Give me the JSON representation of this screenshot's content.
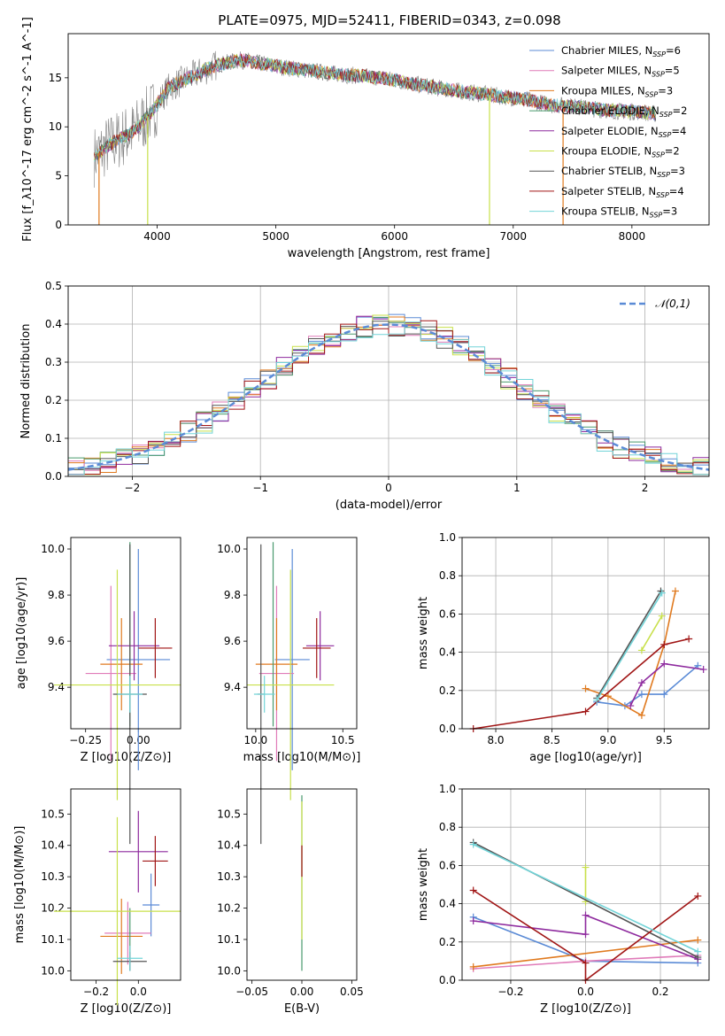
{
  "figure": {
    "title": "PLATE=0975, MJD=52411, FIBERID=0343, z=0.098"
  },
  "models": [
    {
      "name": "Chabrier MILES",
      "nssp": "6",
      "color": "#5b8bd6"
    },
    {
      "name": "Salpeter MILES",
      "nssp": "5",
      "color": "#e07bb9"
    },
    {
      "name": "Kroupa MILES",
      "nssp": "3",
      "color": "#e07a1f"
    },
    {
      "name": "Chabrier ELODIE",
      "nssp": "2",
      "color": "#4a9a6d"
    },
    {
      "name": "Salpeter ELODIE",
      "nssp": "4",
      "color": "#8e2a9e"
    },
    {
      "name": "Kroupa ELODIE",
      "nssp": "2",
      "color": "#c8e04a"
    },
    {
      "name": "Chabrier STELIB",
      "nssp": "3",
      "color": "#555555"
    },
    {
      "name": "Salpeter STELIB",
      "nssp": "4",
      "color": "#a01515"
    },
    {
      "name": "Kroupa STELIB",
      "nssp": "3",
      "color": "#72d4d8"
    }
  ],
  "chart_data": [
    {
      "id": "spectrum",
      "type": "line",
      "xlabel": "wavelength [Angstrom, rest frame]",
      "ylabel": "Flux [f_λ10^-17 erg cm^-2 s^-1 A^-1]",
      "xlim": [
        3250,
        8650
      ],
      "ylim": [
        0,
        19.5
      ],
      "xticks": [
        4000,
        5000,
        6000,
        7000,
        8000
      ],
      "yticks": [
        0,
        5,
        10,
        15
      ],
      "continuum": [
        [
          3470,
          7.0
        ],
        [
          3600,
          8.2
        ],
        [
          3800,
          9.5
        ],
        [
          3950,
          11.5
        ],
        [
          4100,
          14.0
        ],
        [
          4300,
          15.2
        ],
        [
          4500,
          16.3
        ],
        [
          4700,
          16.8
        ],
        [
          4900,
          16.4
        ],
        [
          5100,
          16.0
        ],
        [
          5300,
          15.7
        ],
        [
          5500,
          15.4
        ],
        [
          5700,
          15.2
        ],
        [
          5900,
          15.0
        ],
        [
          6100,
          14.5
        ],
        [
          6300,
          14.1
        ],
        [
          6500,
          13.7
        ],
        [
          6700,
          13.4
        ],
        [
          6900,
          13.1
        ],
        [
          7100,
          12.8
        ],
        [
          7300,
          12.3
        ],
        [
          7500,
          12.1
        ],
        [
          7700,
          11.8
        ],
        [
          7900,
          11.6
        ],
        [
          8100,
          11.5
        ],
        [
          8200,
          11.3
        ]
      ],
      "legend": "upper right",
      "grid": false
    },
    {
      "id": "residuals",
      "type": "histogram",
      "xlabel": "(data-model)/error",
      "ylabel": "Normed distribution",
      "xlim": [
        -2.5,
        2.5
      ],
      "ylim": [
        0,
        0.5
      ],
      "xticks": [
        -2,
        -1,
        0,
        1,
        2
      ],
      "yticks": [
        0.0,
        0.1,
        0.2,
        0.3,
        0.4,
        0.5
      ],
      "reference_label": "𝒩(0,1)",
      "reference_color": "#5b8bd6",
      "legend": "upper right",
      "grid": true
    },
    {
      "id": "age_vs_Z",
      "type": "scatter",
      "errorbars": true,
      "xlabel": "Z [log10(Z/Z⊙)]",
      "ylabel": "age  [log10(age/yr)]",
      "xlim": [
        -0.32,
        0.2
      ],
      "ylim": [
        9.22,
        10.05
      ],
      "xticks": [
        -0.25,
        0.0
      ],
      "yticks": [
        9.4,
        9.6,
        9.8,
        10.0
      ],
      "points": [
        {
          "model": 0,
          "x": 0.0,
          "xerr": 0.15,
          "y": 9.52,
          "yerr": 0.48
        },
        {
          "model": 1,
          "x": -0.13,
          "xerr": 0.12,
          "y": 9.46,
          "yerr": 0.38
        },
        {
          "model": 2,
          "x": -0.08,
          "xerr": 0.1,
          "y": 9.5,
          "yerr": 0.2
        },
        {
          "model": 3,
          "x": -0.04,
          "xerr": 0.0,
          "y": 9.63,
          "yerr": 0.4
        },
        {
          "model": 4,
          "x": -0.02,
          "xerr": 0.12,
          "y": 9.58,
          "yerr": 0.15
        },
        {
          "model": 5,
          "x": -0.1,
          "xerr": 0.3,
          "y": 9.41,
          "yerr": 0.5
        },
        {
          "model": 6,
          "x": -0.04,
          "xerr": 0.08,
          "y": 9.37,
          "yerr": 0.65
        },
        {
          "model": 7,
          "x": 0.08,
          "xerr": 0.08,
          "y": 9.57,
          "yerr": 0.13
        },
        {
          "model": 8,
          "x": -0.04,
          "xerr": 0.06,
          "y": 9.37,
          "yerr": 0.08
        }
      ]
    },
    {
      "id": "age_vs_mass",
      "type": "scatter",
      "errorbars": true,
      "xlabel": "mass [log10(M/M⊙)]",
      "ylabel": "",
      "xlim": [
        9.95,
        10.58
      ],
      "ylim": [
        9.22,
        10.05
      ],
      "xticks": [
        10.0,
        10.5
      ],
      "yticks": [
        9.4,
        9.6,
        9.8,
        10.0
      ],
      "points": [
        {
          "model": 0,
          "x": 10.21,
          "xerr": 0.1,
          "y": 9.52,
          "yerr": 0.48
        },
        {
          "model": 1,
          "x": 10.12,
          "xerr": 0.1,
          "y": 9.46,
          "yerr": 0.38
        },
        {
          "model": 2,
          "x": 10.12,
          "xerr": 0.12,
          "y": 9.5,
          "yerr": 0.2
        },
        {
          "model": 3,
          "x": 10.1,
          "xerr": 0.0,
          "y": 9.63,
          "yerr": 0.4
        },
        {
          "model": 4,
          "x": 10.37,
          "xerr": 0.08,
          "y": 9.58,
          "yerr": 0.15
        },
        {
          "model": 5,
          "x": 10.2,
          "xerr": 0.25,
          "y": 9.41,
          "yerr": 0.5
        },
        {
          "model": 6,
          "x": 10.03,
          "xerr": 0.02,
          "y": 9.37,
          "yerr": 0.65
        },
        {
          "model": 7,
          "x": 10.35,
          "xerr": 0.08,
          "y": 9.57,
          "yerr": 0.13
        },
        {
          "model": 8,
          "x": 10.05,
          "xerr": 0.06,
          "y": 9.37,
          "yerr": 0.08
        }
      ]
    },
    {
      "id": "weight_vs_age",
      "type": "line",
      "xlabel": "age  [log10(age/yr)]",
      "ylabel": "mass weight",
      "xlim": [
        7.7,
        9.9
      ],
      "ylim": [
        0,
        1.0
      ],
      "xticks": [
        8.0,
        8.5,
        9.0,
        9.5
      ],
      "yticks": [
        0.0,
        0.2,
        0.4,
        0.6,
        0.8,
        1.0
      ],
      "grid": true,
      "series": [
        {
          "model": 0,
          "x": [
            8.9,
            9.15,
            9.3,
            9.5,
            9.8
          ],
          "y": [
            0.14,
            0.12,
            0.18,
            0.18,
            0.33
          ]
        },
        {
          "model": 1,
          "x": 8.8,
          "y": 0
        },
        {
          "model": 2,
          "x": [
            8.8,
            9.0,
            9.3,
            9.5,
            9.6
          ],
          "y": [
            0.21,
            0.17,
            0.07,
            0.44,
            0.72
          ]
        },
        {
          "model": 4,
          "x": [
            9.2,
            9.3,
            9.5,
            9.85
          ],
          "y": [
            0.12,
            0.24,
            0.34,
            0.31
          ]
        },
        {
          "model": 5,
          "x": [
            9.3,
            9.48
          ],
          "y": [
            0.41,
            0.59
          ]
        },
        {
          "model": 6,
          "x": [
            8.9,
            9.47
          ],
          "y": [
            0.16,
            0.72
          ]
        },
        {
          "model": 7,
          "x": [
            7.8,
            8.8,
            9.5,
            9.72
          ],
          "y": [
            0.0,
            0.09,
            0.44,
            0.47
          ]
        },
        {
          "model": 8,
          "x": [
            8.9,
            9.48
          ],
          "y": [
            0.15,
            0.71
          ]
        }
      ]
    },
    {
      "id": "mass_vs_Z",
      "type": "scatter",
      "errorbars": true,
      "xlabel": "Z [log10(Z/Z⊙)]",
      "ylabel": "mass [log10(M/M⊙)]",
      "xlim": [
        -0.32,
        0.2
      ],
      "ylim": [
        9.97,
        10.58
      ],
      "xticks": [
        -0.2,
        0.0
      ],
      "yticks": [
        10.0,
        10.1,
        10.2,
        10.3,
        10.4,
        10.5
      ],
      "points": [
        {
          "model": 0,
          "x": 0.06,
          "xerr": 0.04,
          "y": 10.21,
          "yerr": 0.1
        },
        {
          "model": 1,
          "x": -0.05,
          "xerr": 0.11,
          "y": 10.12,
          "yerr": 0.1
        },
        {
          "model": 2,
          "x": -0.08,
          "xerr": 0.1,
          "y": 10.11,
          "yerr": 0.12
        },
        {
          "model": 3,
          "x": -0.04,
          "xerr": 0.0,
          "y": 10.1,
          "yerr": 0.1
        },
        {
          "model": 4,
          "x": 0.0,
          "xerr": 0.14,
          "y": 10.38,
          "yerr": 0.13
        },
        {
          "model": 5,
          "x": -0.1,
          "xerr": 0.3,
          "y": 10.19,
          "yerr": 0.3
        },
        {
          "model": 6,
          "x": -0.04,
          "xerr": 0.08,
          "y": 10.03,
          "yerr": 0.03
        },
        {
          "model": 7,
          "x": 0.08,
          "xerr": 0.06,
          "y": 10.35,
          "yerr": 0.08
        },
        {
          "model": 8,
          "x": -0.04,
          "xerr": 0.06,
          "y": 10.04,
          "yerr": 0.04
        }
      ]
    },
    {
      "id": "mass_vs_EBV",
      "type": "scatter",
      "errorbars": true,
      "xlabel": "E(B-V)",
      "ylabel": "",
      "xlim": [
        -0.055,
        0.055
      ],
      "ylim": [
        9.97,
        10.58
      ],
      "xticks": [
        -0.05,
        0.0,
        0.05
      ],
      "yticks": [
        10.0,
        10.1,
        10.2,
        10.3,
        10.4,
        10.5
      ],
      "points": [
        {
          "model": 3,
          "x": 0.0,
          "xerr": 0.0,
          "y": 10.28,
          "yerr": 0.28
        },
        {
          "model": 5,
          "x": 0.0,
          "xerr": 0.0,
          "y": 10.32,
          "yerr": 0.22
        },
        {
          "model": 7,
          "x": 0.0,
          "xerr": 0.0,
          "y": 10.35,
          "yerr": 0.05
        }
      ]
    },
    {
      "id": "weight_vs_Z",
      "type": "line",
      "xlabel": "Z [log10(Z/Z⊙)]",
      "ylabel": "mass weight",
      "xlim": [
        -0.33,
        0.33
      ],
      "ylim": [
        0,
        1.0
      ],
      "xticks": [
        -0.2,
        0.0,
        0.2
      ],
      "yticks": [
        0.0,
        0.2,
        0.4,
        0.6,
        0.8,
        1.0
      ],
      "grid": true,
      "series": [
        {
          "model": 0,
          "x": [
            -0.3,
            0.0,
            0.3
          ],
          "y": [
            0.33,
            0.1,
            0.09
          ]
        },
        {
          "model": 1,
          "x": [
            -0.3,
            0.0,
            0.3
          ],
          "y": [
            0.06,
            0.1,
            0.13
          ]
        },
        {
          "model": 2,
          "x": [
            -0.3,
            0.3
          ],
          "y": [
            0.07,
            0.21
          ]
        },
        {
          "model": 4,
          "x": [
            -0.3,
            0.0,
            0.0,
            0.3
          ],
          "y": [
            0.31,
            0.24,
            0.34,
            0.11
          ]
        },
        {
          "model": 5,
          "x": [
            0.0,
            0.0
          ],
          "y": [
            0.41,
            0.59
          ]
        },
        {
          "model": 6,
          "x": [
            -0.3,
            0.3
          ],
          "y": [
            0.72,
            0.12
          ]
        },
        {
          "model": 7,
          "x": [
            -0.3,
            0.0,
            0.0,
            0.3
          ],
          "y": [
            0.47,
            0.09,
            0.0,
            0.44
          ]
        },
        {
          "model": 8,
          "x": [
            -0.3,
            0.3
          ],
          "y": [
            0.71,
            0.15
          ]
        }
      ]
    }
  ]
}
